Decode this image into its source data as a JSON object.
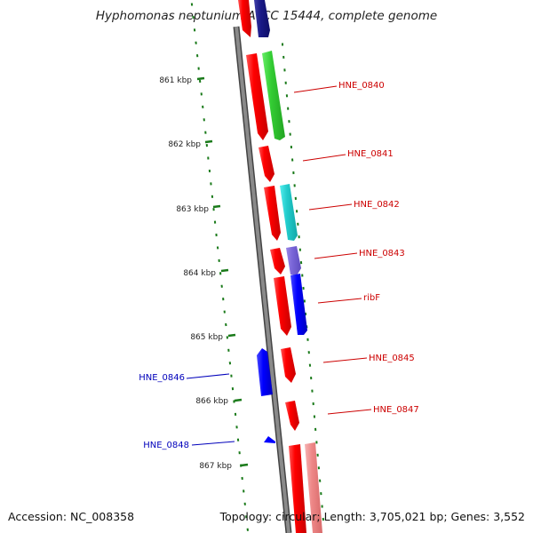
{
  "title": "Hyphomonas neptunium ATCC 15444, complete genome",
  "footer": {
    "accession": "Accession: NC_008358",
    "summary": "Topology: circular; Length: 3,705,021 bp; Genes: 3,552"
  },
  "ticks": [
    "861 kbp",
    "862 kbp",
    "863 kbp",
    "864 kbp",
    "865 kbp",
    "866 kbp",
    "867 kbp"
  ],
  "labels": {
    "right": [
      "HNE_0840",
      "HNE_0841",
      "HNE_0842",
      "HNE_0843",
      "ribF",
      "HNE_0845",
      "HNE_0847"
    ],
    "left": [
      "HNE_0846",
      "HNE_0848"
    ]
  },
  "colors": {
    "backbone": "#808080",
    "gene_forward": "#ff0000",
    "gene_reverse": "#0000ff",
    "label_forward": "#cc0000",
    "label_reverse": "#0000bb",
    "tick_marks": "#1a7a1a"
  }
}
